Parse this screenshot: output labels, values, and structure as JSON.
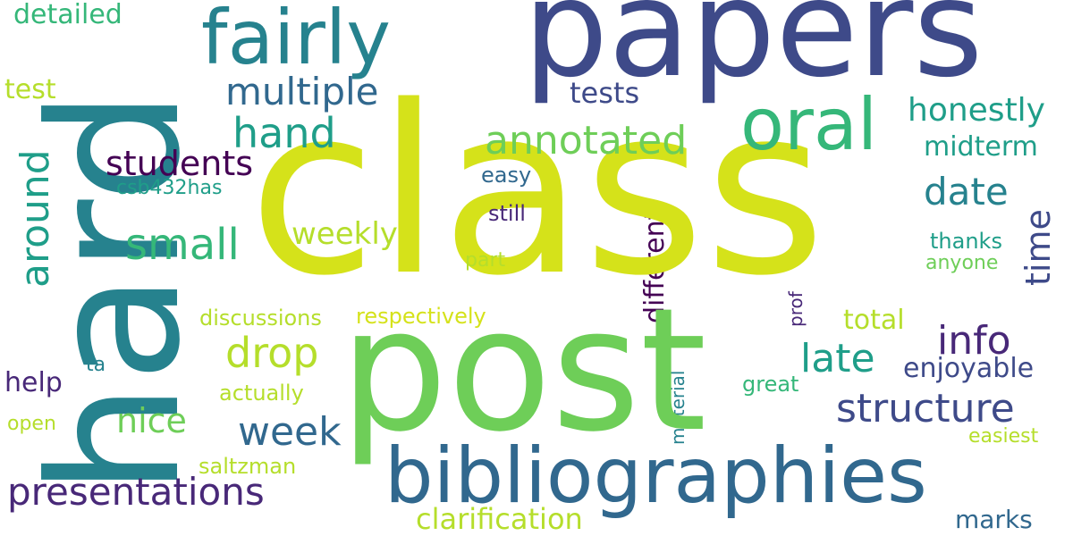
{
  "palette": {
    "purple": "#482878",
    "dark_blue": "#3e4a89",
    "blue": "#31688e",
    "teal": "#26828e",
    "green_teal": "#1f9e89",
    "green": "#35b779",
    "light_green": "#6ece58",
    "yellow_green": "#b5de2b",
    "yellow": "#d5e21a",
    "dark_purple": "#440154"
  },
  "words": {
    "class": "class",
    "post": "post",
    "hard": "hard",
    "papers": "papers",
    "bibliographies": "bibliographies",
    "fairly": "fairly",
    "oral": "oral",
    "presentations": "presentations",
    "multiple": "multiple",
    "annotated": "annotated",
    "hand": "hand",
    "students": "students",
    "around": "around",
    "small": "small",
    "weekly": "weekly",
    "date": "date",
    "time": "time",
    "honestly": "honestly",
    "midterm": "midterm",
    "tests": "tests",
    "test": "test",
    "detailed": "detailed",
    "info": "info",
    "late": "late",
    "structure": "structure",
    "week": "week",
    "drop": "drop",
    "nice": "nice",
    "help": "help",
    "different": "different",
    "enjoyable": "enjoyable",
    "total": "total",
    "clarification": "clarification",
    "marks": "marks",
    "csb432has": "csb432has",
    "easy": "easy",
    "still": "still",
    "thanks": "thanks",
    "anyone": "anyone",
    "part": "part",
    "discussions": "discussions",
    "respectively": "respectively",
    "prof": "prof",
    "ta": "ta",
    "actually": "actually",
    "material": "material",
    "great": "great",
    "open": "open",
    "saltzman": "saltzman",
    "easiest": "easiest"
  }
}
